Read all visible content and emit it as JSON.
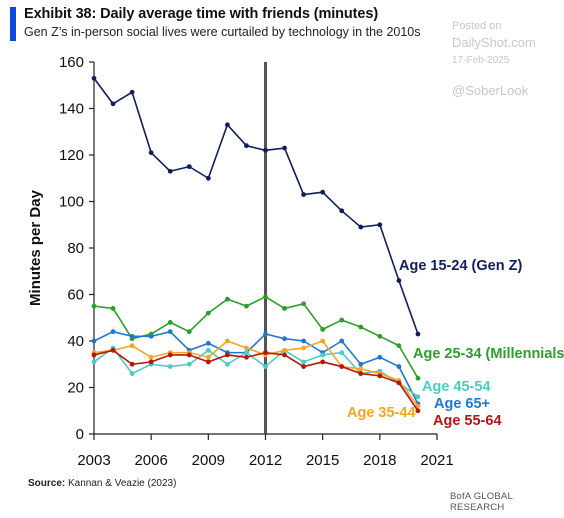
{
  "header": {
    "title": "Exhibit 38: Daily average time with friends (minutes)",
    "subtitle": "Gen Z’s in-person social lives were curtailed by technology in the 2010s"
  },
  "watermark": {
    "posted": "Posted on",
    "site": "DailyShot.com",
    "date": "17-Feb-2025",
    "handle": "@SoberLook"
  },
  "footer": {
    "source_label": "Source:",
    "source_text": "Kannan & Veazie (2023)",
    "credit": "BofA GLOBAL RESEARCH"
  },
  "chart_data": {
    "type": "line",
    "title": "Exhibit 38: Daily average time with friends (minutes)",
    "ylabel": "Minutes per Day",
    "xlabel": "",
    "xlim": [
      2003,
      2021
    ],
    "ylim": [
      0,
      160
    ],
    "x_ticks": [
      2003,
      2006,
      2009,
      2012,
      2015,
      2018,
      2021
    ],
    "y_ticks": [
      0,
      20,
      40,
      60,
      80,
      100,
      120,
      140,
      160
    ],
    "grid": false,
    "legend": "inline labels at right",
    "vertical_line": 2012,
    "x": [
      2003,
      2004,
      2005,
      2006,
      2007,
      2008,
      2009,
      2010,
      2011,
      2012,
      2013,
      2014,
      2015,
      2016,
      2017,
      2018,
      2019,
      2020
    ],
    "series": [
      {
        "name": "Age 15-24 (Gen Z)",
        "color": "#0f1f5c",
        "values": [
          153,
          142,
          147,
          121,
          113,
          115,
          110,
          133,
          124,
          122,
          123,
          103,
          104,
          96,
          89,
          90,
          66,
          43
        ]
      },
      {
        "name": "Age 25-34 (Millennials)",
        "color": "#2aa02a",
        "values": [
          55,
          54,
          41,
          43,
          48,
          44,
          52,
          58,
          55,
          59,
          54,
          56,
          45,
          49,
          46,
          42,
          38,
          24
        ]
      },
      {
        "name": "Age 45-54",
        "color": "#4ccbc4",
        "values": [
          31,
          37,
          26,
          30,
          29,
          30,
          36,
          30,
          35,
          29,
          36,
          31,
          34,
          35,
          26,
          27,
          22,
          16
        ]
      },
      {
        "name": "Age 65+",
        "color": "#1f77d4",
        "values": [
          40,
          44,
          42,
          42,
          44,
          36,
          39,
          35,
          35,
          43,
          41,
          40,
          35,
          40,
          30,
          33,
          29,
          13
        ]
      },
      {
        "name": "Age 35-44",
        "color": "#f5a623",
        "values": [
          35,
          36,
          38,
          33,
          35,
          35,
          33,
          40,
          37,
          34,
          36,
          37,
          40,
          29,
          28,
          26,
          23,
          12
        ]
      },
      {
        "name": "Age 55-64",
        "color": "#b5160f",
        "values": [
          34,
          36,
          30,
          31,
          34,
          34,
          31,
          34,
          33,
          35,
          34,
          29,
          31,
          29,
          26,
          25,
          22,
          10
        ]
      }
    ]
  }
}
